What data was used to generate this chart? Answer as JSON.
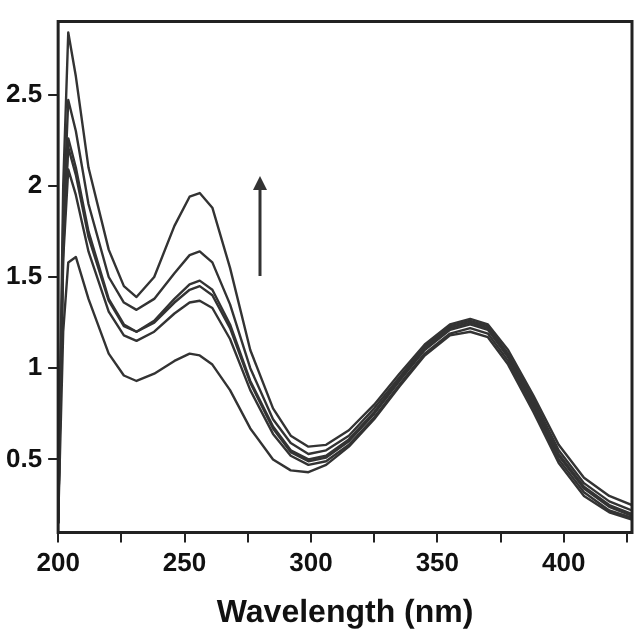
{
  "chart_data": {
    "type": "line",
    "xlabel": "Wavelength (nm)",
    "x": [
      200,
      202,
      204,
      207,
      212,
      220,
      226,
      231,
      238,
      246,
      252,
      256,
      261,
      268,
      276,
      285,
      292,
      299,
      306,
      315,
      325,
      335,
      345,
      355,
      363,
      370,
      378,
      388,
      398,
      408,
      418,
      427
    ],
    "xlim": [
      200,
      427
    ],
    "xticks": [
      200,
      {
        "value": 225,
        "label": null
      },
      250,
      {
        "value": 275,
        "label": null
      },
      300,
      {
        "value": 325,
        "label": null
      },
      350,
      {
        "value": 375,
        "label": null
      },
      400,
      {
        "value": 425,
        "label": null
      }
    ],
    "ylim": [
      0.1,
      2.9
    ],
    "yticks": [
      0.5,
      1,
      1.5,
      2,
      2.5
    ],
    "grid": false,
    "legend": false,
    "marker": "none",
    "line_style": "solid",
    "series": [
      {
        "color": "#333333",
        "values": [
          0.15,
          2.0,
          2.84,
          2.6,
          2.1,
          1.65,
          1.45,
          1.39,
          1.5,
          1.78,
          1.94,
          1.96,
          1.88,
          1.55,
          1.1,
          0.78,
          0.63,
          0.57,
          0.58,
          0.66,
          0.8,
          0.97,
          1.13,
          1.24,
          1.27,
          1.24,
          1.1,
          0.85,
          0.58,
          0.4,
          0.3,
          0.25
        ]
      },
      {
        "color": "#333333",
        "values": [
          0.15,
          1.8,
          2.47,
          2.3,
          1.9,
          1.5,
          1.36,
          1.32,
          1.38,
          1.52,
          1.62,
          1.64,
          1.58,
          1.35,
          1.0,
          0.72,
          0.59,
          0.53,
          0.55,
          0.63,
          0.78,
          0.95,
          1.12,
          1.23,
          1.26,
          1.23,
          1.08,
          0.83,
          0.55,
          0.37,
          0.27,
          0.22
        ]
      },
      {
        "color": "#333333",
        "values": [
          0.15,
          1.7,
          2.26,
          2.1,
          1.75,
          1.38,
          1.24,
          1.2,
          1.26,
          1.38,
          1.46,
          1.48,
          1.43,
          1.24,
          0.93,
          0.68,
          0.55,
          0.5,
          0.52,
          0.61,
          0.76,
          0.94,
          1.11,
          1.22,
          1.25,
          1.22,
          1.07,
          0.81,
          0.53,
          0.35,
          0.25,
          0.2
        ]
      },
      {
        "color": "#333333",
        "values": [
          0.15,
          1.65,
          2.21,
          2.06,
          1.72,
          1.37,
          1.23,
          1.2,
          1.25,
          1.36,
          1.43,
          1.45,
          1.4,
          1.22,
          0.92,
          0.67,
          0.54,
          0.49,
          0.51,
          0.6,
          0.75,
          0.93,
          1.1,
          1.21,
          1.24,
          1.21,
          1.06,
          0.8,
          0.52,
          0.34,
          0.24,
          0.19
        ]
      },
      {
        "color": "#333333",
        "values": [
          0.15,
          1.6,
          2.09,
          1.95,
          1.64,
          1.31,
          1.18,
          1.15,
          1.2,
          1.3,
          1.36,
          1.37,
          1.33,
          1.16,
          0.88,
          0.64,
          0.52,
          0.47,
          0.49,
          0.58,
          0.73,
          0.91,
          1.08,
          1.19,
          1.22,
          1.19,
          1.04,
          0.78,
          0.5,
          0.32,
          0.22,
          0.18
        ]
      },
      {
        "color": "#333333",
        "values": [
          0.15,
          1.2,
          1.58,
          1.61,
          1.38,
          1.08,
          0.96,
          0.93,
          0.97,
          1.04,
          1.08,
          1.07,
          1.02,
          0.88,
          0.67,
          0.5,
          0.44,
          0.43,
          0.47,
          0.57,
          0.72,
          0.9,
          1.07,
          1.18,
          1.2,
          1.17,
          1.02,
          0.76,
          0.48,
          0.3,
          0.21,
          0.17
        ]
      }
    ]
  }
}
